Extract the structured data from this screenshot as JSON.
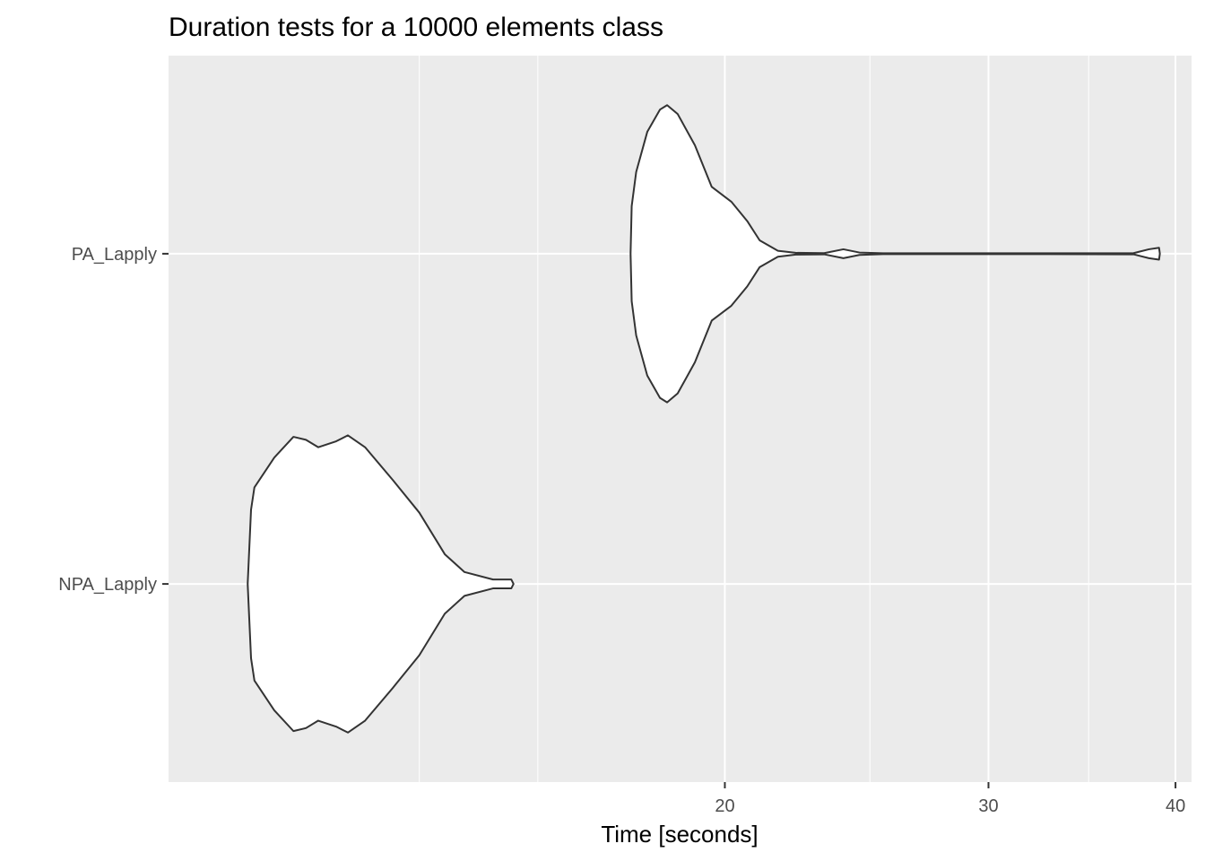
{
  "chart_data": {
    "type": "violin",
    "title": "Duration tests for a  10000  elements  class",
    "xlabel": "Time [seconds]",
    "ylabel": "",
    "x_scale": "log10",
    "xlim": [
      8.5,
      41
    ],
    "x_major_ticks": [
      20,
      30,
      40
    ],
    "x_minor_ticks": [
      12.5,
      15,
      25,
      35
    ],
    "grid": true,
    "categories": [
      "NPA_Lapply",
      "PA_Lapply"
    ],
    "series": [
      {
        "category": "NPA_Lapply",
        "profile": [
          {
            "x": 9.6,
            "half_width": 0.0
          },
          {
            "x": 9.65,
            "half_width": 0.5
          },
          {
            "x": 9.7,
            "half_width": 0.65
          },
          {
            "x": 10.0,
            "half_width": 0.85
          },
          {
            "x": 10.3,
            "half_width": 0.99
          },
          {
            "x": 10.5,
            "half_width": 0.97
          },
          {
            "x": 10.7,
            "half_width": 0.92
          },
          {
            "x": 11.0,
            "half_width": 0.96
          },
          {
            "x": 11.2,
            "half_width": 1.0
          },
          {
            "x": 11.5,
            "half_width": 0.92
          },
          {
            "x": 12.0,
            "half_width": 0.7
          },
          {
            "x": 12.5,
            "half_width": 0.48
          },
          {
            "x": 13.0,
            "half_width": 0.2
          },
          {
            "x": 13.4,
            "half_width": 0.08
          },
          {
            "x": 14.0,
            "half_width": 0.03
          },
          {
            "x": 14.4,
            "half_width": 0.03
          },
          {
            "x": 14.45,
            "half_width": 0.0
          }
        ]
      },
      {
        "category": "PA_Lapply",
        "profile": [
          {
            "x": 17.3,
            "half_width": 0.0
          },
          {
            "x": 17.33,
            "half_width": 0.32
          },
          {
            "x": 17.45,
            "half_width": 0.55
          },
          {
            "x": 17.75,
            "half_width": 0.82
          },
          {
            "x": 18.1,
            "half_width": 0.97
          },
          {
            "x": 18.3,
            "half_width": 1.0
          },
          {
            "x": 18.6,
            "half_width": 0.94
          },
          {
            "x": 19.1,
            "half_width": 0.73
          },
          {
            "x": 19.6,
            "half_width": 0.45
          },
          {
            "x": 20.2,
            "half_width": 0.35
          },
          {
            "x": 20.7,
            "half_width": 0.22
          },
          {
            "x": 21.1,
            "half_width": 0.09
          },
          {
            "x": 21.7,
            "half_width": 0.02
          },
          {
            "x": 22.3,
            "half_width": 0.006
          },
          {
            "x": 23.3,
            "half_width": 0.004
          },
          {
            "x": 24.0,
            "half_width": 0.03
          },
          {
            "x": 24.6,
            "half_width": 0.008
          },
          {
            "x": 25.5,
            "half_width": 0.003
          },
          {
            "x": 33.0,
            "half_width": 0.003
          },
          {
            "x": 37.5,
            "half_width": 0.004
          },
          {
            "x": 38.4,
            "half_width": 0.03
          },
          {
            "x": 39.0,
            "half_width": 0.04
          },
          {
            "x": 39.05,
            "half_width": 0.0
          }
        ]
      }
    ],
    "colors": {
      "panel_bg": "#ebebeb",
      "grid_major": "#ffffff",
      "violin_fill": "#ffffff",
      "violin_stroke": "#333333",
      "tick_mark": "#333333"
    }
  }
}
